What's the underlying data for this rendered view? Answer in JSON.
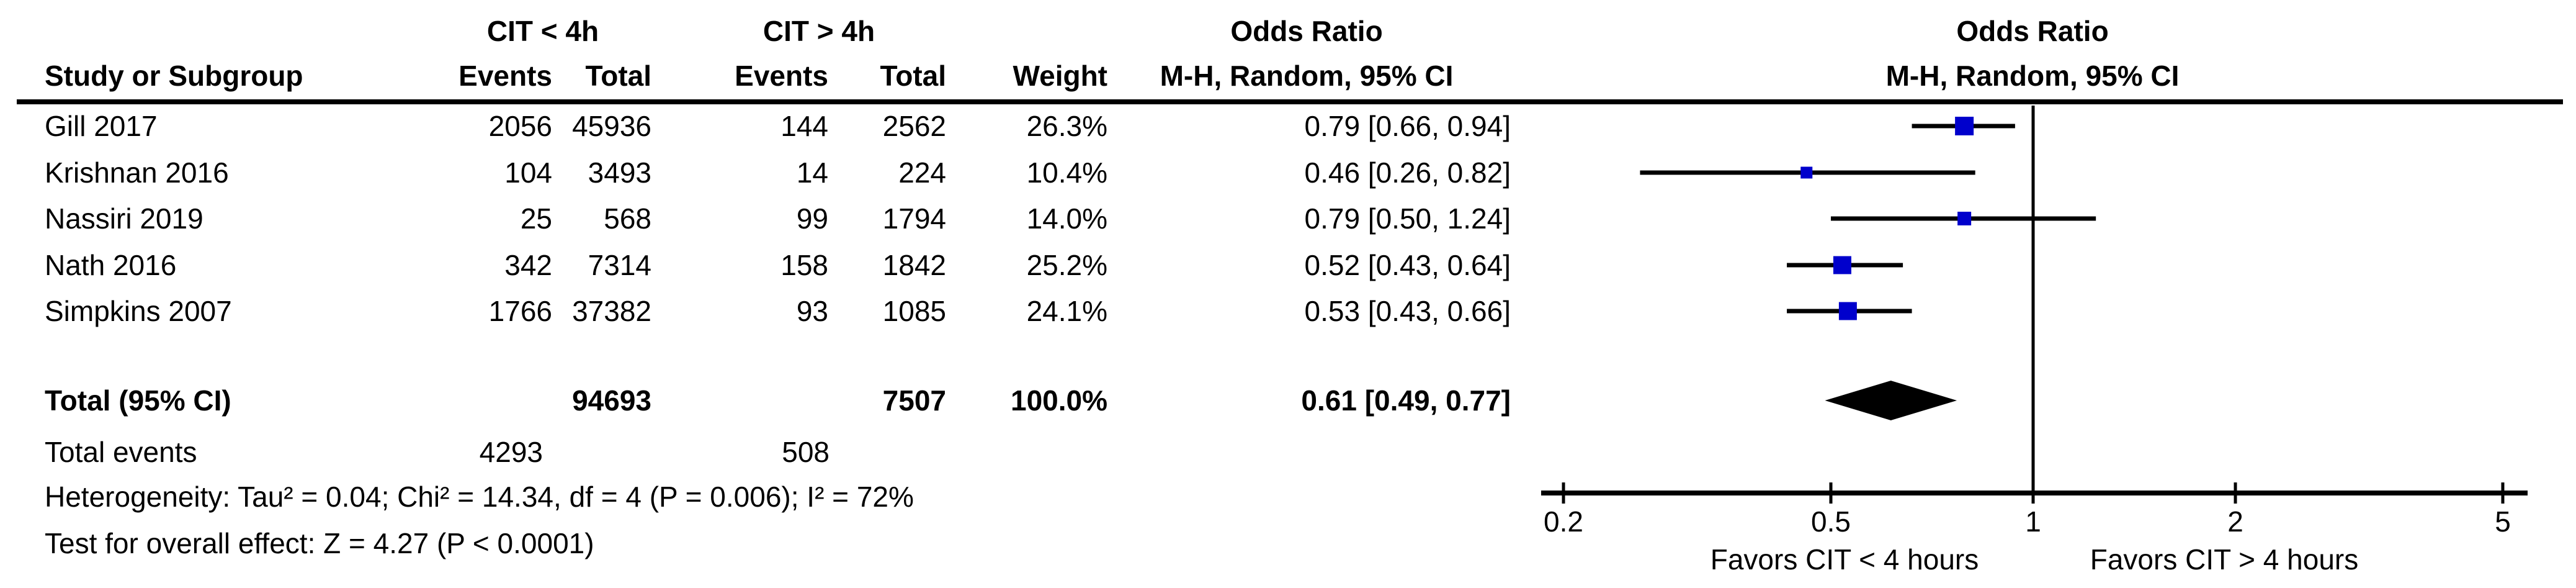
{
  "table": {
    "group1_header": "CIT < 4h",
    "group2_header": "CIT > 4h",
    "or_header": "Odds Ratio",
    "columns": {
      "study": "Study or Subgroup",
      "events": "Events",
      "total": "Total",
      "events2": "Events",
      "total2": "Total",
      "weight": "Weight",
      "method": "M-H, Random, 95% CI"
    },
    "rows": [
      {
        "study": "Gill 2017",
        "e1": "2056",
        "t1": "45936",
        "e2": "144",
        "t2": "2562",
        "weight": "26.3%",
        "or_ci": "0.79 [0.66, 0.94]"
      },
      {
        "study": "Krishnan 2016",
        "e1": "104",
        "t1": "3493",
        "e2": "14",
        "t2": "224",
        "weight": "10.4%",
        "or_ci": "0.46 [0.26, 0.82]"
      },
      {
        "study": "Nassiri 2019",
        "e1": "25",
        "t1": "568",
        "e2": "99",
        "t2": "1794",
        "weight": "14.0%",
        "or_ci": "0.79 [0.50, 1.24]"
      },
      {
        "study": "Nath 2016",
        "e1": "342",
        "t1": "7314",
        "e2": "158",
        "t2": "1842",
        "weight": "25.2%",
        "or_ci": "0.52 [0.43, 0.64]"
      },
      {
        "study": "Simpkins 2007",
        "e1": "1766",
        "t1": "37382",
        "e2": "93",
        "t2": "1085",
        "weight": "24.1%",
        "or_ci": "0.53 [0.43, 0.66]"
      }
    ],
    "total_row": {
      "label": "Total (95% CI)",
      "t1": "94693",
      "t2": "7507",
      "weight": "100.0%",
      "or_ci": "0.61 [0.49, 0.77]"
    },
    "total_events": {
      "label": "Total events",
      "e1": "4293",
      "e2": "508"
    },
    "heterogeneity": "Heterogeneity: Tau² = 0.04; Chi² = 14.34, df = 4 (P = 0.006); I² = 72%",
    "overall_effect": "Test for overall effect: Z = 4.27 (P < 0.0001)"
  },
  "chart_data": {
    "type": "forest",
    "scale": "log",
    "title": "Odds Ratio",
    "subtitle": "M-H, Random, 95% CI",
    "effect_measure": "Odds Ratio, Mantel-Haenszel, Random effects, 95% CI",
    "axis_ticks": [
      0.2,
      0.5,
      1,
      2,
      5
    ],
    "xlim": [
      0.2,
      5
    ],
    "null_line": 1,
    "xlabel_left": "Favors CIT < 4 hours",
    "xlabel_right": "Favors CIT > 4 hours",
    "studies": [
      {
        "name": "Gill 2017",
        "or": 0.79,
        "ci_low": 0.66,
        "ci_high": 0.94,
        "weight_pct": 26.3
      },
      {
        "name": "Krishnan 2016",
        "or": 0.46,
        "ci_low": 0.26,
        "ci_high": 0.82,
        "weight_pct": 10.4
      },
      {
        "name": "Nassiri 2019",
        "or": 0.79,
        "ci_low": 0.5,
        "ci_high": 1.24,
        "weight_pct": 14.0
      },
      {
        "name": "Nath 2016",
        "or": 0.52,
        "ci_low": 0.43,
        "ci_high": 0.64,
        "weight_pct": 25.2
      },
      {
        "name": "Simpkins 2007",
        "or": 0.53,
        "ci_low": 0.43,
        "ci_high": 0.66,
        "weight_pct": 24.1
      }
    ],
    "total": {
      "or": 0.61,
      "ci_low": 0.49,
      "ci_high": 0.77
    },
    "marker_color": "#0000CC",
    "line_color": "#000000"
  }
}
